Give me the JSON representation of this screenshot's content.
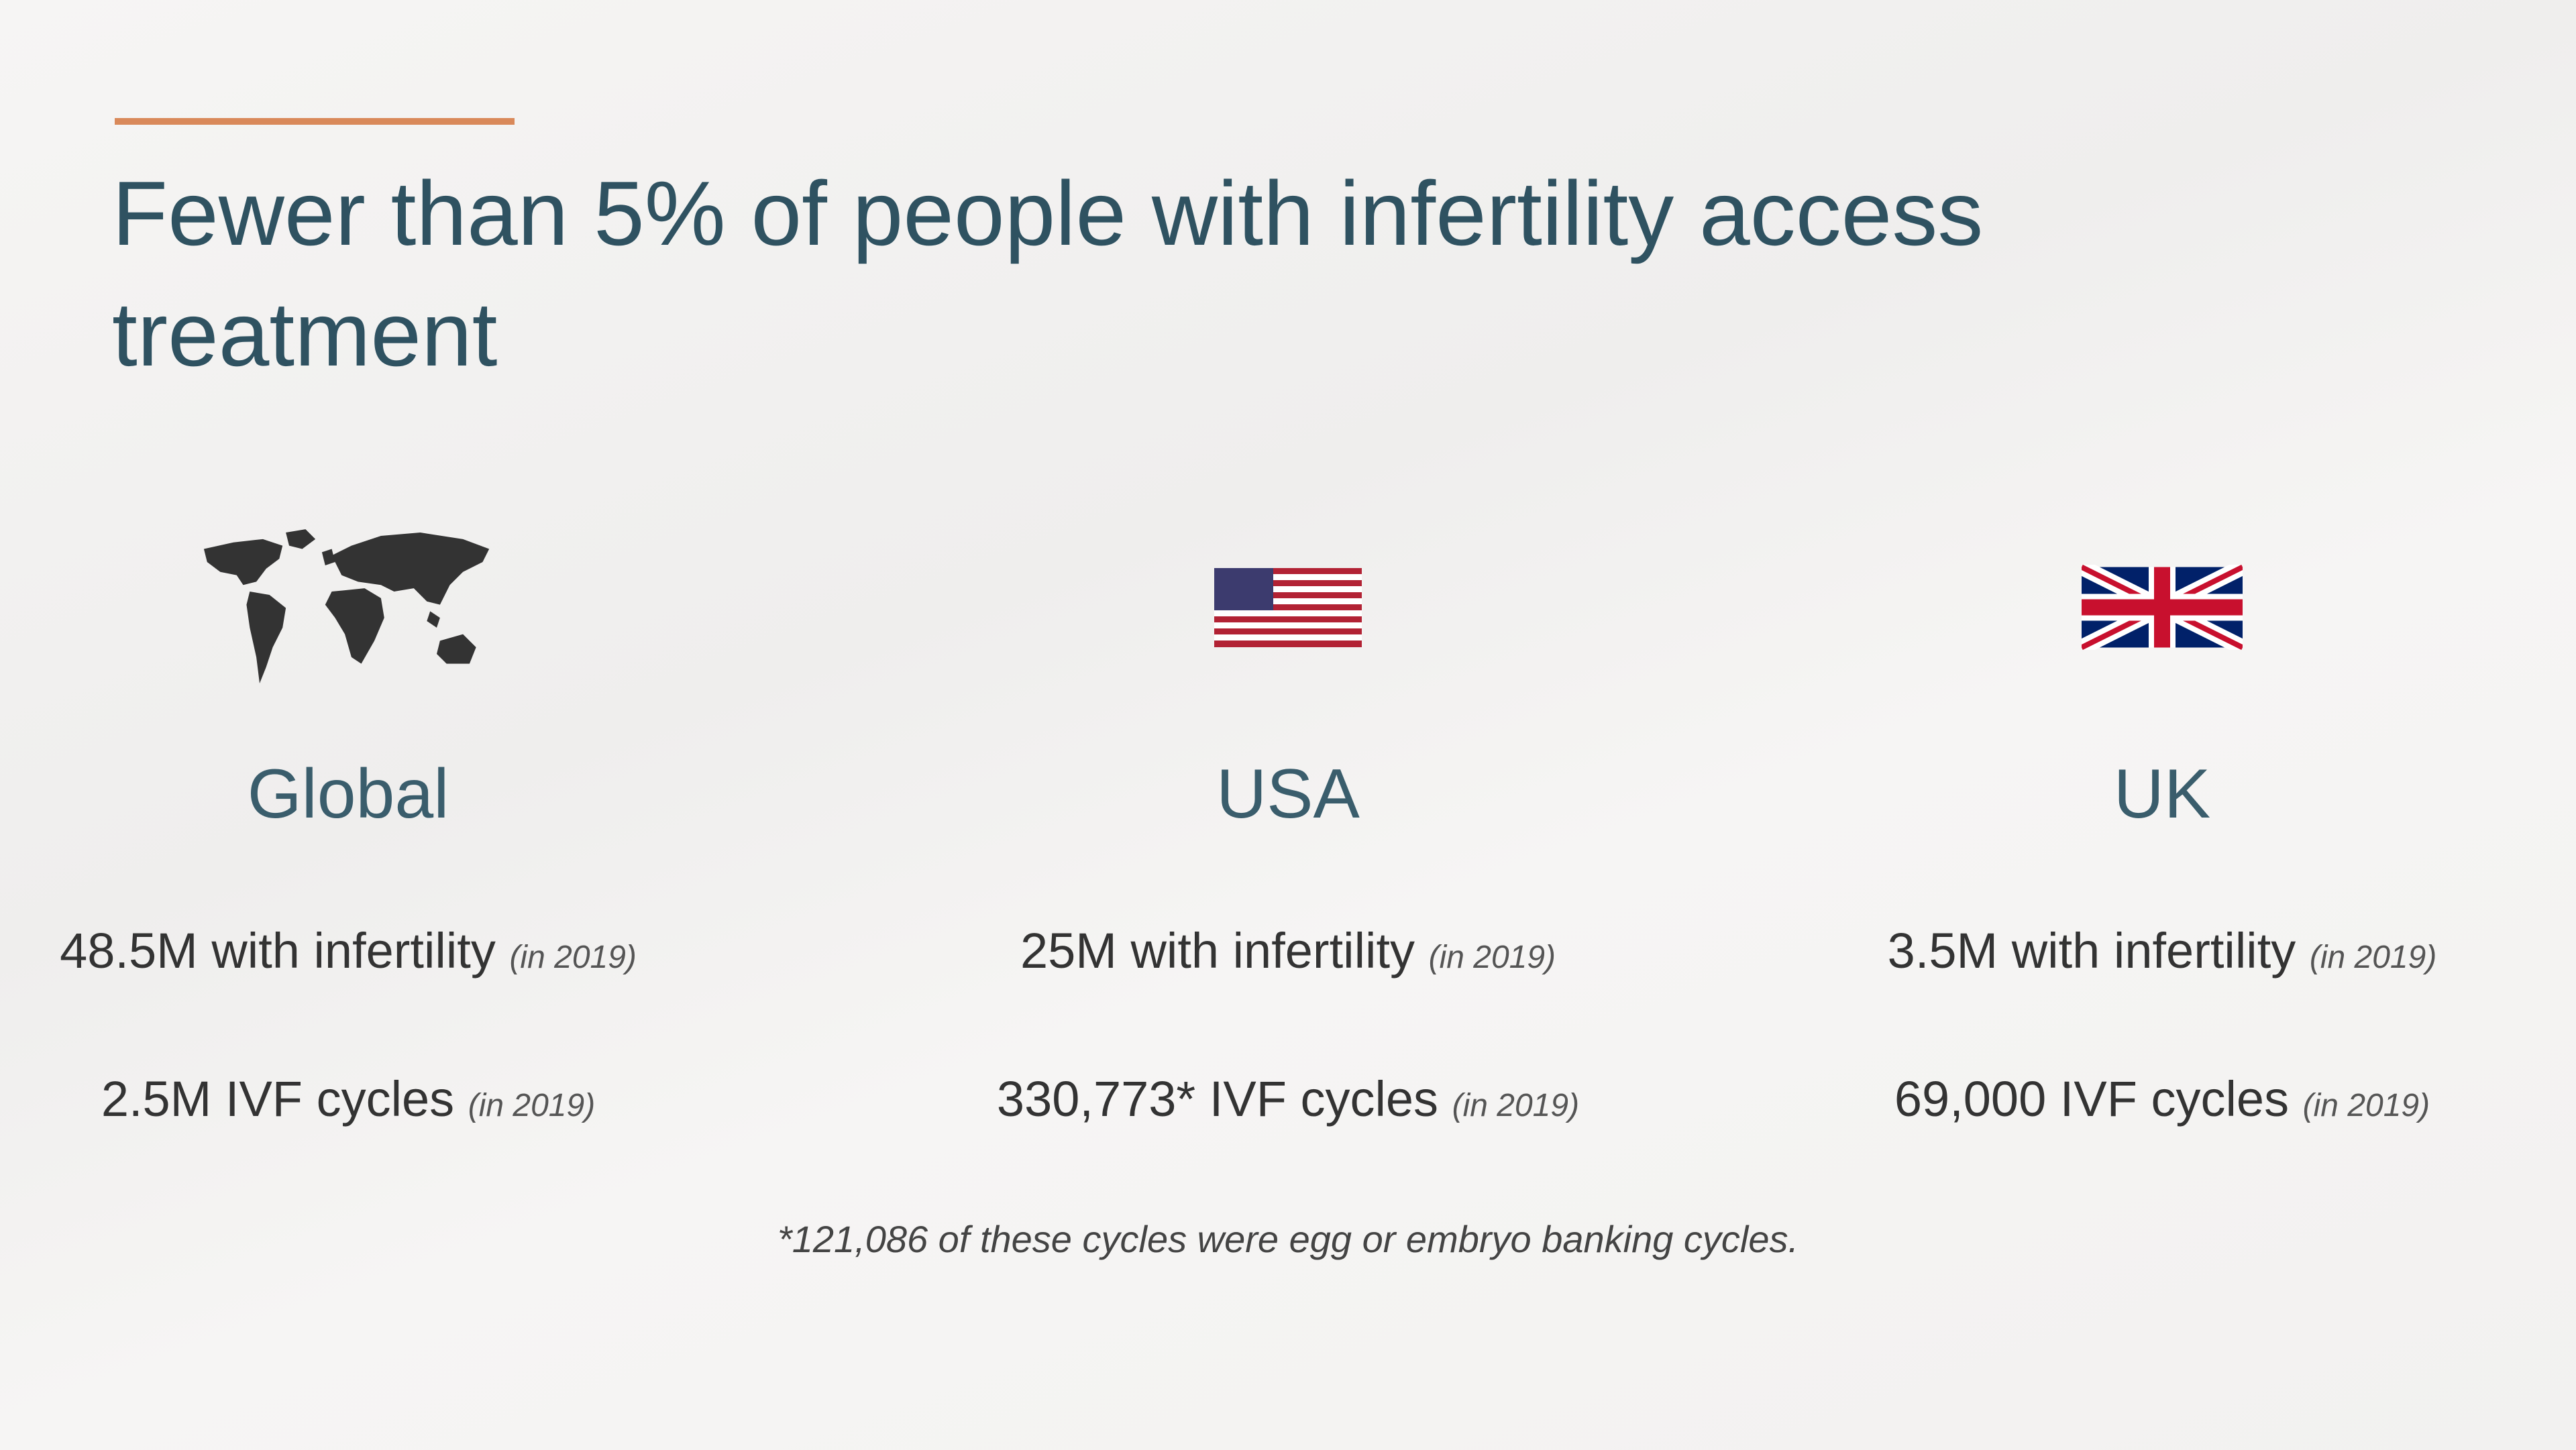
{
  "header": {
    "title": "Fewer than 5% of people with infertility access treatment"
  },
  "regions": [
    {
      "label": "Global",
      "stats": [
        {
          "text": "48.5M with infertility",
          "note": "(in 2019)"
        },
        {
          "text": "2.5M IVF cycles",
          "note": "(in 2019)"
        }
      ]
    },
    {
      "label": "USA",
      "stats": [
        {
          "text": "25M with infertility",
          "note": "(in 2019)"
        },
        {
          "text": "330,773* IVF cycles",
          "note": "(in 2019)"
        }
      ]
    },
    {
      "label": "UK",
      "stats": [
        {
          "text": "3.5M with infertility",
          "note": "(in 2019)"
        },
        {
          "text": "69,000 IVF cycles",
          "note": "(in 2019)"
        }
      ]
    }
  ],
  "footnote": "*121,086 of these cycles were egg or embryo banking cycles."
}
